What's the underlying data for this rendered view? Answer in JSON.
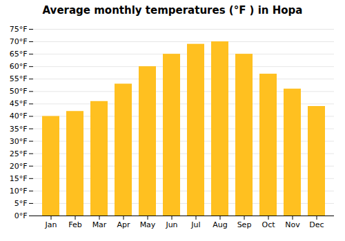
{
  "chart_data": {
    "type": "bar",
    "title": "Average monthly temperatures (°F ) in Hopa",
    "categories": [
      "Jan",
      "Feb",
      "Mar",
      "Apr",
      "May",
      "Jun",
      "Jul",
      "Aug",
      "Sep",
      "Oct",
      "Nov",
      "Dec"
    ],
    "values": [
      40,
      42,
      46,
      53,
      60,
      65,
      69,
      70,
      65,
      57,
      51,
      44
    ],
    "color": "#FFC020",
    "ylim": [
      0,
      75
    ],
    "yticks": [
      {
        "value": 0,
        "label": "0°F"
      },
      {
        "value": 5,
        "label": "5°F"
      },
      {
        "value": 10,
        "label": "10°F"
      },
      {
        "value": 15,
        "label": "15°F"
      },
      {
        "value": 20,
        "label": "20°F"
      },
      {
        "value": 25,
        "label": "25°F"
      },
      {
        "value": 30,
        "label": "30°F"
      },
      {
        "value": 35,
        "label": "35°F"
      },
      {
        "value": 40,
        "label": "40°F"
      },
      {
        "value": 45,
        "label": "45°F"
      },
      {
        "value": 50,
        "label": "50°F"
      },
      {
        "value": 55,
        "label": "55°F"
      },
      {
        "value": 60,
        "label": "60°F"
      },
      {
        "value": 65,
        "label": "65°F"
      },
      {
        "value": 70,
        "label": "70°F"
      },
      {
        "value": 75,
        "label": "75°F"
      }
    ],
    "grid": true
  }
}
